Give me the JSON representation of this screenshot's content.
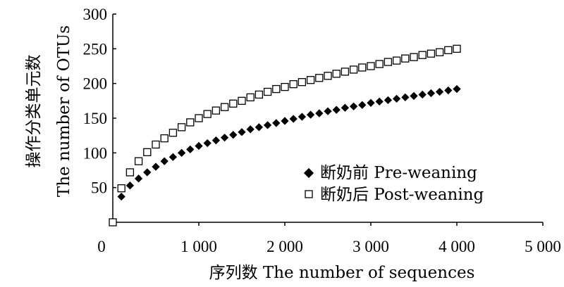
{
  "chart_data": {
    "type": "scatter",
    "title": "",
    "xlabel": "序列数 The number of sequences",
    "ylabel": [
      "操作分类单元数",
      "The number of OTUs"
    ],
    "xlim": [
      0,
      5000
    ],
    "ylim": [
      0,
      300
    ],
    "x_ticks": [
      0,
      1000,
      2000,
      3000,
      4000,
      5000
    ],
    "x_tick_labels": [
      "0",
      "1 000",
      "2 000",
      "3 000",
      "4 000",
      "5 000"
    ],
    "y_ticks": [
      50,
      100,
      150,
      200,
      250,
      300
    ],
    "y_tick_labels": [
      "50",
      "100",
      "150",
      "200",
      "250",
      "300"
    ],
    "grid": false,
    "legend_position": "bottom-right",
    "series": [
      {
        "name": "断奶前 Pre-weaning",
        "marker": "filled-diamond",
        "color": "#000000",
        "points": [
          [
            100,
            37
          ],
          [
            200,
            53
          ],
          [
            300,
            63
          ],
          [
            400,
            72
          ],
          [
            500,
            80
          ],
          [
            600,
            88
          ],
          [
            700,
            94
          ],
          [
            800,
            100
          ],
          [
            900,
            105
          ],
          [
            1000,
            110
          ],
          [
            1100,
            114
          ],
          [
            1200,
            118
          ],
          [
            1300,
            122
          ],
          [
            1400,
            126
          ],
          [
            1500,
            130
          ],
          [
            1600,
            134
          ],
          [
            1700,
            137
          ],
          [
            1800,
            140
          ],
          [
            1900,
            143
          ],
          [
            2000,
            146
          ],
          [
            2100,
            149
          ],
          [
            2200,
            152
          ],
          [
            2300,
            155
          ],
          [
            2400,
            157
          ],
          [
            2500,
            160
          ],
          [
            2600,
            162
          ],
          [
            2700,
            165
          ],
          [
            2800,
            167
          ],
          [
            2900,
            169
          ],
          [
            3000,
            172
          ],
          [
            3100,
            174
          ],
          [
            3200,
            176
          ],
          [
            3300,
            178
          ],
          [
            3400,
            180
          ],
          [
            3500,
            182
          ],
          [
            3600,
            184
          ],
          [
            3700,
            186
          ],
          [
            3800,
            188
          ],
          [
            3900,
            190
          ],
          [
            4000,
            192
          ]
        ]
      },
      {
        "name": "断奶后 Post-weaning",
        "marker": "open-square",
        "color": "#000000",
        "points": [
          [
            0,
            0
          ],
          [
            100,
            49
          ],
          [
            200,
            72
          ],
          [
            300,
            88
          ],
          [
            400,
            101
          ],
          [
            500,
            112
          ],
          [
            600,
            121
          ],
          [
            700,
            129
          ],
          [
            800,
            137
          ],
          [
            900,
            144
          ],
          [
            1000,
            150
          ],
          [
            1100,
            156
          ],
          [
            1200,
            161
          ],
          [
            1300,
            166
          ],
          [
            1400,
            171
          ],
          [
            1500,
            175
          ],
          [
            1600,
            180
          ],
          [
            1700,
            184
          ],
          [
            1800,
            188
          ],
          [
            1900,
            192
          ],
          [
            2000,
            195
          ],
          [
            2100,
            199
          ],
          [
            2200,
            202
          ],
          [
            2300,
            205
          ],
          [
            2400,
            208
          ],
          [
            2500,
            211
          ],
          [
            2600,
            214
          ],
          [
            2700,
            217
          ],
          [
            2800,
            220
          ],
          [
            2900,
            223
          ],
          [
            3000,
            225
          ],
          [
            3100,
            228
          ],
          [
            3200,
            231
          ],
          [
            3300,
            233
          ],
          [
            3400,
            236
          ],
          [
            3500,
            238
          ],
          [
            3600,
            241
          ],
          [
            3700,
            243
          ],
          [
            3800,
            245
          ],
          [
            3900,
            248
          ],
          [
            4000,
            250
          ]
        ]
      }
    ]
  }
}
